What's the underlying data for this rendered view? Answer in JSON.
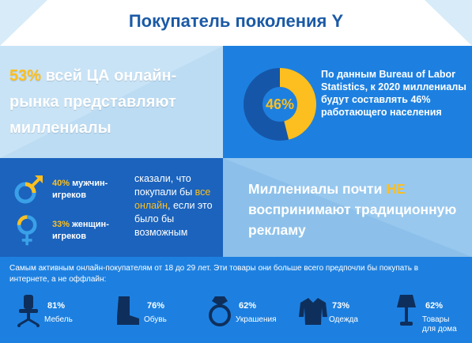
{
  "title": "Покупатель поколения Y",
  "stat_panel": {
    "percent": "53%",
    "text": " всей ЦА онлайн-рынка представляют миллениалы"
  },
  "bureau_panel": {
    "donut_percent": "46%",
    "donut_value": 0.46,
    "text": "По данным Bureau of Labor Statistics, к 2020 миллениалы будут составлять 46% работающего населения"
  },
  "gender_panel": {
    "male_percent": "40%",
    "male_label": " мужчин-игреков",
    "female_percent": "33%",
    "female_label": " женщин-игреков",
    "said_before": "сказали, что покупали бы ",
    "said_highlight": "все онлайн",
    "said_after": ", если это было бы возможным"
  },
  "ads_panel": {
    "before": "Миллениалы почти ",
    "highlight": "НЕ",
    "after": " воспринимают традиционную рекламу"
  },
  "bottom_panel": {
    "intro": "Самым активным онлайн-покупателям от 18 до 29 лет. Эти товары они больше всего предпочли бы покупать в интернете, а не оффлайн:",
    "goods": [
      {
        "icon": "office-chair-icon",
        "percent": "81%",
        "label": "Мебель"
      },
      {
        "icon": "boot-icon",
        "percent": "76%",
        "label": "Обувь"
      },
      {
        "icon": "ring-icon",
        "percent": "62%",
        "label": "Украшения"
      },
      {
        "icon": "jacket-icon",
        "percent": "73%",
        "label": "Одежда"
      },
      {
        "icon": "lamp-icon",
        "percent": "62%",
        "label": "Товары для дома"
      }
    ]
  },
  "colors": {
    "title": "#1b5aa6",
    "accent": "#fdbf1f",
    "light_blue": "#bcdcf3",
    "mid_blue": "#1d80e0",
    "dark_blue": "#1b63bd",
    "pale_blue": "#8cc0ea"
  }
}
